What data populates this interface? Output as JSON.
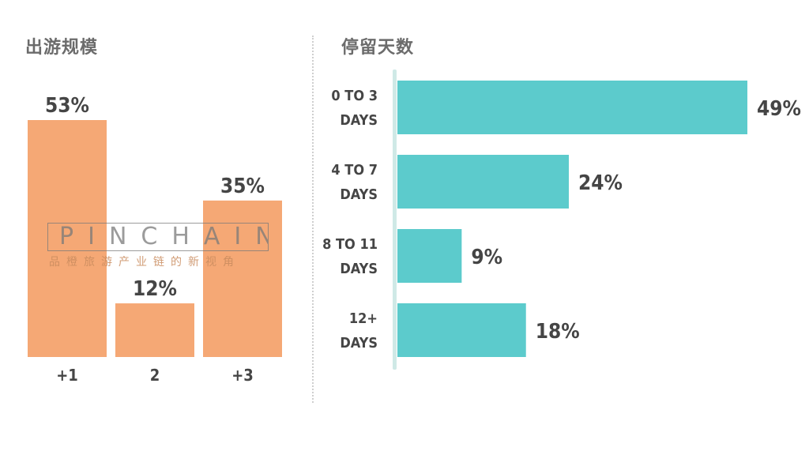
{
  "chart_data": [
    {
      "type": "bar",
      "title": "出游规模",
      "categories": [
        "+1",
        "2",
        "+3"
      ],
      "values": [
        53,
        12,
        35
      ],
      "value_labels": [
        "53%",
        "12%",
        "35%"
      ],
      "ylim": [
        0,
        53
      ],
      "color": "#f5a875",
      "grid": false
    },
    {
      "type": "bar",
      "orientation": "horizontal",
      "title": "停留天数",
      "categories": [
        [
          "0 TO 3",
          "DAYS"
        ],
        [
          "4 TO 7",
          "DAYS"
        ],
        [
          "8 TO 11",
          "DAYS"
        ],
        [
          "12+",
          "DAYS"
        ]
      ],
      "values": [
        49,
        24,
        9,
        18
      ],
      "value_labels": [
        "49%",
        "24%",
        "9%",
        "18%"
      ],
      "xlim": [
        0,
        49
      ],
      "color": "#5ccbcc",
      "axis_color": "#cfe9e6",
      "grid": false
    }
  ],
  "watermark": {
    "text": "PINCHAIN",
    "subtext": "品橙旅游产业链的新视角"
  }
}
